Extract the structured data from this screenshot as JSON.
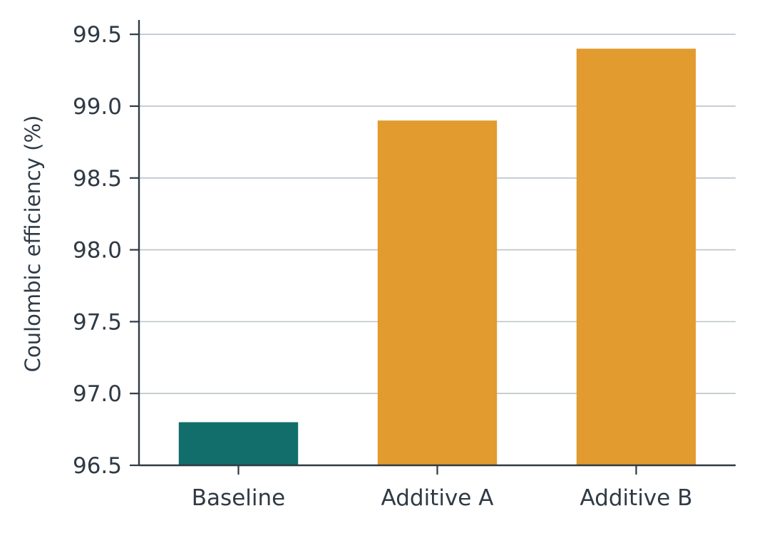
{
  "chart_data": {
    "type": "bar",
    "title": "",
    "xlabel": "",
    "ylabel": "Coulombic efficiency (%)",
    "categories": [
      "Baseline",
      "Additive A",
      "Additive B"
    ],
    "values": [
      96.8,
      98.9,
      99.4
    ],
    "bar_colors": [
      "#116e6a",
      "#e19b2e"
    ],
    "ylim": [
      96.5,
      99.6
    ],
    "yticks": [
      96.5,
      97.0,
      97.5,
      98.0,
      98.5,
      99.0,
      99.5
    ],
    "ytick_labels": [
      "96.5",
      "97.0",
      "97.5",
      "98.0",
      "98.5",
      "99.0",
      "99.5"
    ],
    "grid": "horizontal",
    "legend": "none"
  },
  "colors": {
    "grid": "#bcc3c9",
    "axis": "#2f3a45",
    "text": "#2f3a45"
  }
}
